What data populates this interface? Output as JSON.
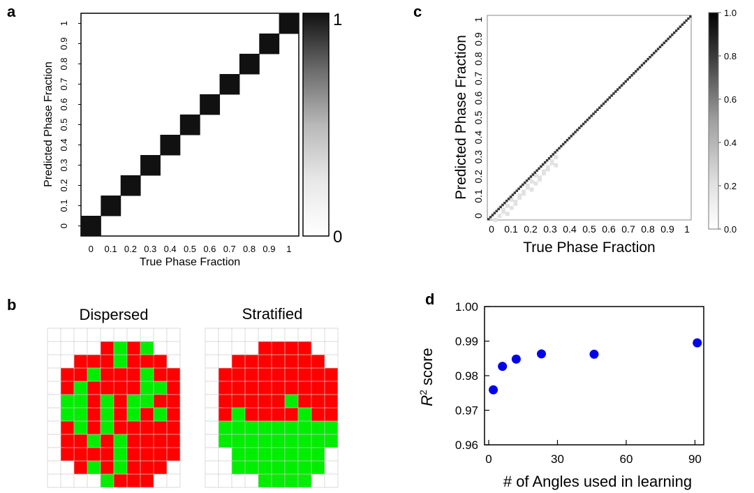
{
  "colors": {
    "ink": "#000000",
    "matrix_dark": "#111111",
    "grain_red": "#ff0000",
    "grain_green": "#00ee00",
    "grid_line": "#cccccc",
    "marker_blue": "#0000ee",
    "axis_gray": "#808080"
  },
  "chart_data": [
    {
      "panel_label": "a",
      "type": "heatmap",
      "xlabel": "True Phase Fraction",
      "ylabel": "Predicted Phase Fraction",
      "categories": [
        "0",
        "0.1",
        "0.2",
        "0.3",
        "0.4",
        "0.5",
        "0.6",
        "0.7",
        "0.8",
        "0.9",
        "1"
      ],
      "diagonal_values": [
        1,
        1,
        1,
        1,
        1,
        1,
        1,
        1,
        1,
        1,
        1
      ],
      "off_diagonal_value": 0,
      "colorbar": {
        "min": 0,
        "max": 1,
        "tick_labels": [
          "0",
          "1"
        ]
      }
    },
    {
      "panel_label": "b",
      "type": "heatmap",
      "panels": [
        {
          "title": "Dispersed",
          "grid": [
            "0000000000",
            "0000RGRG00",
            "00RRRGRRR0",
            "0RRGRRRGRR",
            "0RGRRRRGGR",
            "0GGRGRGGRR",
            "0GGRGRGRGR",
            "0RGRGRRRRR",
            "0RRGRGRRRR",
            "0RRRRGRRRR",
            "00RGRGRRR0",
            "0000GRRR00"
          ]
        },
        {
          "title": "Stratified",
          "grid": [
            "0000000000",
            "0000RRRR00",
            "00RRRRRRR0",
            "0RRRRRRRRR",
            "0RRRRRRRRR",
            "0RRRRRGRRR",
            "0RGRRRRGRR",
            "0GGGGGGGGG",
            "0GGGGGGGGG",
            "00GGGGGGG0",
            "00GGGGGGG0",
            "0000GGGG00"
          ]
        }
      ]
    },
    {
      "panel_label": "c",
      "type": "heatmap",
      "xlabel": "True Phase Fraction",
      "ylabel": "Predicted Phase Fraction",
      "x_tick_labels": [
        "0",
        "0.1",
        "0.2",
        "0.3",
        "0.4",
        "0.5",
        "0.6",
        "0.7",
        "0.8",
        "0.9",
        "1"
      ],
      "y_tick_labels": [
        "0",
        "0.1",
        "0.2",
        "0.3",
        "0.4",
        "0.5",
        "0.6",
        "0.7",
        "0.8",
        "0.9",
        "1"
      ],
      "bins": 101,
      "diagonal_values": [
        1.0
      ],
      "colorbar": {
        "min": 0.0,
        "max": 1.0,
        "tick_labels": [
          "0.0",
          "0.2",
          "0.4",
          "0.6",
          "0.8",
          "1.0"
        ]
      }
    },
    {
      "panel_label": "d",
      "type": "scatter",
      "xlabel": "# of Angles used in learning",
      "ylabel_main": "R",
      "ylabel_sup": "2",
      "ylabel_rest": " score",
      "xlim": [
        0,
        92
      ],
      "ylim": [
        0.96,
        1.0
      ],
      "x_ticks": [
        0,
        30,
        60,
        90
      ],
      "y_tick_labels": [
        "0.96",
        "0.97",
        "0.98",
        "0.99",
        "1.00"
      ],
      "x": [
        2,
        6,
        12,
        23,
        46,
        91
      ],
      "y": [
        0.9759,
        0.9827,
        0.9848,
        0.9863,
        0.9862,
        0.9895
      ]
    }
  ]
}
